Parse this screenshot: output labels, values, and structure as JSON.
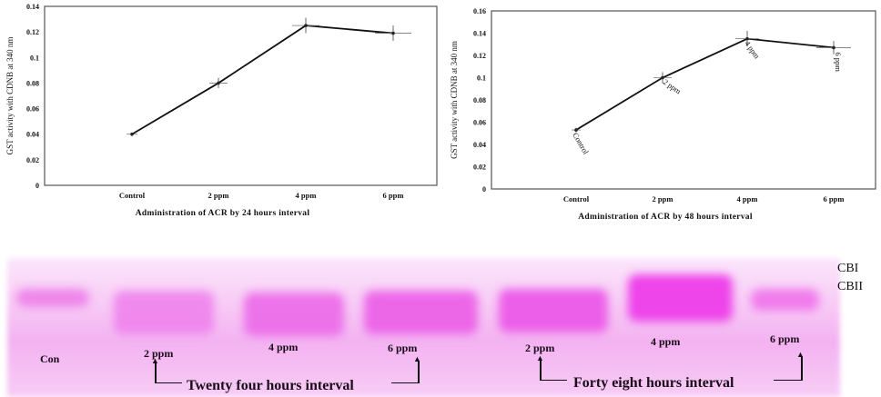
{
  "chart_data": [
    {
      "type": "line",
      "title": "",
      "xlabel": "Administration of ACR by 24 hours interval",
      "ylabel": "GST activity with CDNB at 340 nm",
      "categories": [
        "Control",
        "2 ppm",
        "4 ppm",
        "6 ppm"
      ],
      "values": [
        0.04,
        0.08,
        0.125,
        0.119
      ],
      "error_bars": [
        0.001,
        0.004,
        0.006,
        0.006
      ],
      "ylim": [
        0,
        0.14
      ],
      "yticks": [
        "0",
        "0.02",
        "0.04",
        "0.06",
        "0.08",
        "0.1",
        "0.12",
        "0.14"
      ],
      "grid": false,
      "legend": null
    },
    {
      "type": "line",
      "title": "",
      "xlabel": "Administration of ACR  by 48 hours interval",
      "ylabel": "GST activity with CDNB at 340 nm",
      "categories": [
        "Control",
        "2 ppm",
        "4 ppm",
        "6 ppm"
      ],
      "values": [
        0.053,
        0.1,
        0.135,
        0.127
      ],
      "error_bars": [
        0.002,
        0.005,
        0.007,
        0.006
      ],
      "point_labels": [
        "Control",
        "2 ppm",
        "4 ppm",
        "6 ppm"
      ],
      "ylim": [
        0,
        0.16
      ],
      "yticks": [
        "0",
        "0.02",
        "0.04",
        "0.06",
        "0.08",
        "0.1",
        "0.12",
        "0.14",
        "0.16"
      ],
      "grid": false,
      "legend": null
    }
  ],
  "gel": {
    "lane_labels": [
      {
        "text": "Con"
      },
      {
        "text": "2 ppm"
      },
      {
        "text": "4 ppm"
      },
      {
        "text": "6 ppm"
      },
      {
        "text": "2 ppm"
      },
      {
        "text": "4 ppm"
      },
      {
        "text": "6 ppm"
      }
    ],
    "interval_labels": [
      "Twenty four hours interval",
      "Forty eight hours interval"
    ],
    "band_labels": [
      "CBI",
      "CBII"
    ],
    "colors": {
      "stain": "#f050ec",
      "background": "#f8d2f6"
    }
  }
}
